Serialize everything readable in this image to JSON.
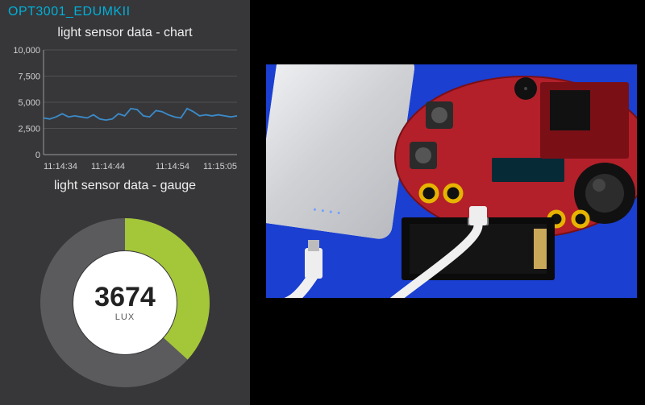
{
  "panel": {
    "title": "OPT3001_EDUMKII",
    "title_color": "#00b0d8",
    "background": "#37373a"
  },
  "chart": {
    "title": "light sensor data - chart",
    "type": "line",
    "ylim": [
      0,
      10000
    ],
    "yticks": [
      0,
      2500,
      5000,
      7500,
      10000
    ],
    "ytick_labels": [
      "0",
      "2,500",
      "5,000",
      "7,500",
      "10,000"
    ],
    "xtick_labels": [
      "11:14:34",
      "11:14:44",
      "11:14:54",
      "11:15:05"
    ],
    "series_color": "#3b8bc9",
    "grid_color": "#6a6a6d",
    "axis_color": "#9a9a9c",
    "text_color": "#d0d0d0",
    "label_fontsize": 11,
    "values": [
      3500,
      3400,
      3600,
      3900,
      3600,
      3700,
      3600,
      3500,
      3800,
      3400,
      3300,
      3400,
      3900,
      3700,
      4400,
      4300,
      3700,
      3600,
      4200,
      4100,
      3800,
      3600,
      3500,
      4400,
      4100,
      3700,
      3800,
      3700,
      3800,
      3700,
      3600,
      3700
    ]
  },
  "gauge": {
    "title": "light sensor data - gauge",
    "type": "donut",
    "value": 3674,
    "unit": "LUX",
    "min": 0,
    "max": 10000,
    "fill_color": "#a4c639",
    "track_color": "#5b5b5e",
    "center_bg": "#ffffff",
    "value_color": "#222222",
    "unit_color": "#666666",
    "value_fontsize": 34,
    "unit_fontsize": 11,
    "thickness": 40,
    "diameter": 210
  },
  "photo": {
    "description": "hardware-board-photo",
    "background": "#1a3fd1"
  }
}
